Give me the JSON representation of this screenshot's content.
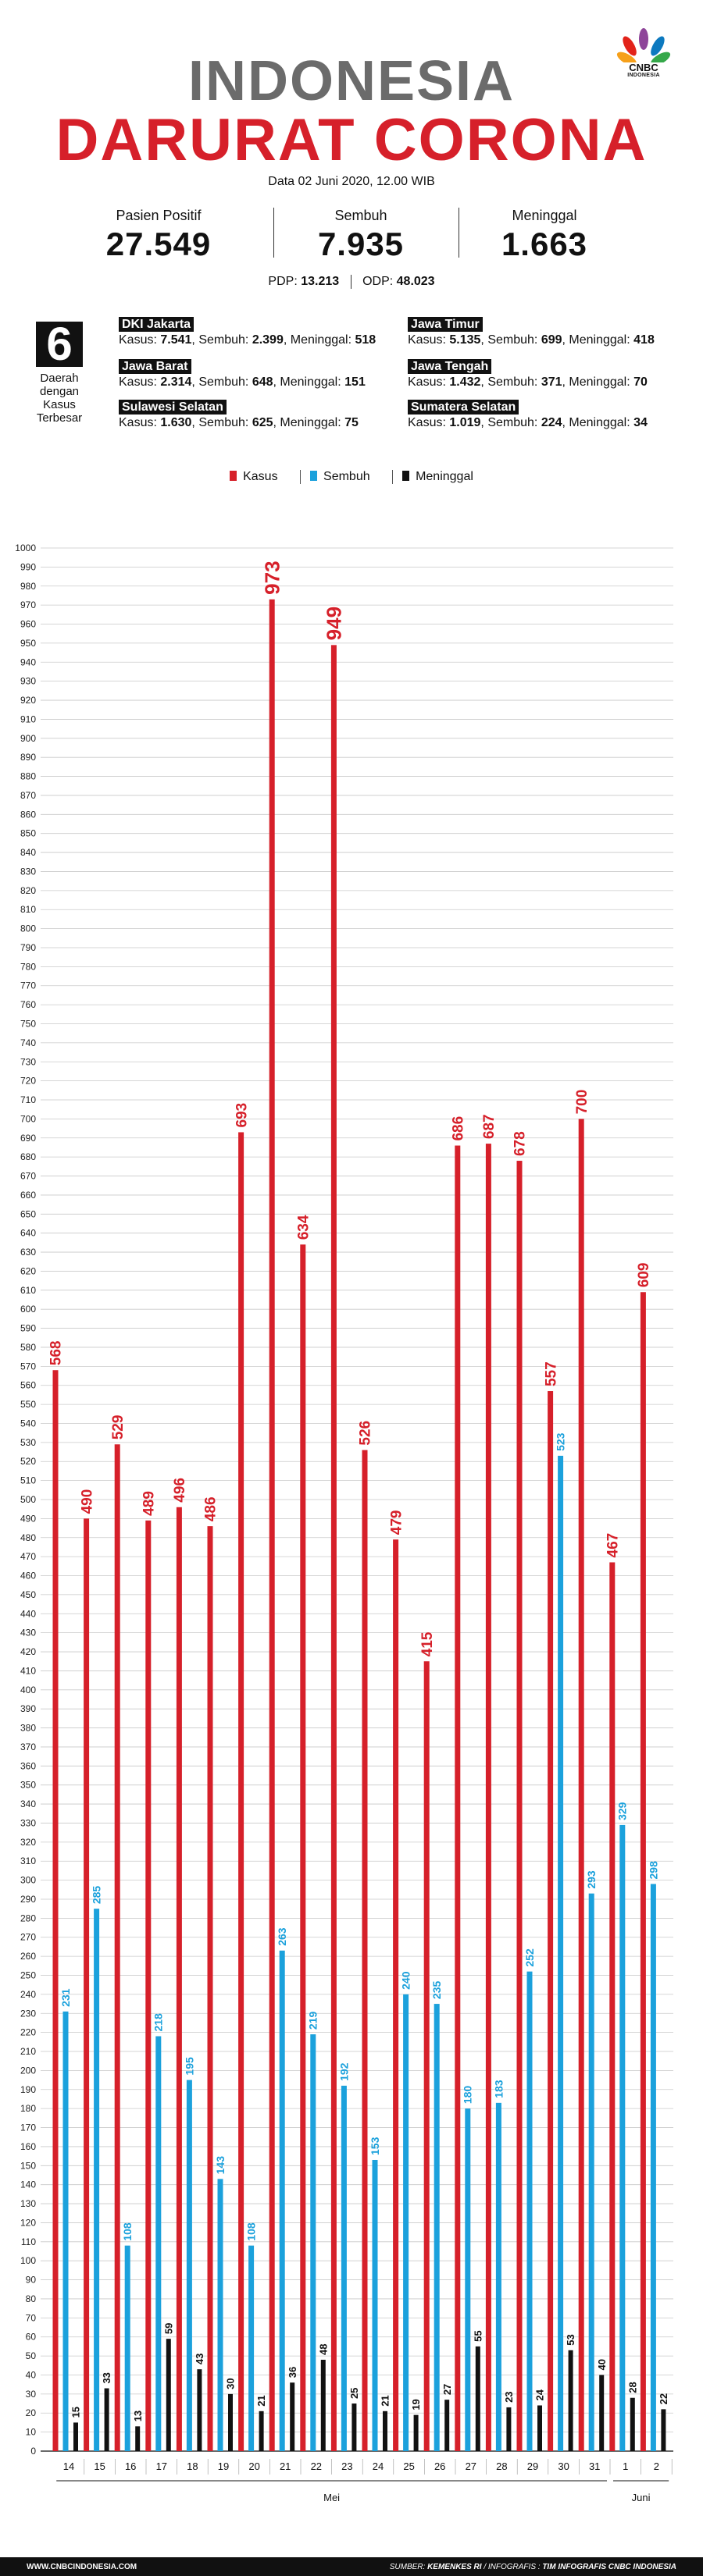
{
  "header": {
    "title_line1": "INDONESIA",
    "title_line2": "DARURAT CORONA",
    "date": "Data 02 Juni 2020, 12.00 WIB",
    "logo_text": "CNBC",
    "logo_sub": "INDONESIA"
  },
  "stats": [
    {
      "label": "Pasien Positif",
      "value": "27.549"
    },
    {
      "label": "Sembuh",
      "value": "7.935"
    },
    {
      "label": "Meninggal",
      "value": "1.663"
    }
  ],
  "pdp_odp": {
    "pdp_label": "PDP:",
    "pdp_value": "13.213",
    "odp_label": "ODP:",
    "odp_value": "48.023"
  },
  "top_regions": {
    "count": "6",
    "caption": [
      "Daerah",
      "dengan",
      "Kasus",
      "Terbesar"
    ],
    "items": [
      {
        "name": "DKI Jakarta",
        "kasus": "7.541",
        "sembuh": "2.399",
        "meninggal": "518"
      },
      {
        "name": "Jawa Timur",
        "kasus": "5.135",
        "sembuh": "699",
        "meninggal": "418"
      },
      {
        "name": "Jawa Barat",
        "kasus": "2.314",
        "sembuh": "648",
        "meninggal": "151"
      },
      {
        "name": "Jawa Tengah",
        "kasus": "1.432",
        "sembuh": "371",
        "meninggal": "70"
      },
      {
        "name": "Sulawesi Selatan",
        "kasus": "1.630",
        "sembuh": "625",
        "meninggal": "75"
      },
      {
        "name": "Sumatera Selatan",
        "kasus": "1.019",
        "sembuh": "224",
        "meninggal": "34"
      }
    ],
    "labels": {
      "kasus": "Kasus:",
      "sembuh": "Sembuh:",
      "meninggal": "Meninggal:"
    }
  },
  "legend": [
    {
      "label": "Kasus",
      "color": "#d6202a"
    },
    {
      "label": "Sembuh",
      "color": "#1ba1dc"
    },
    {
      "label": "Meninggal",
      "color": "#111111"
    }
  ],
  "chart_data": {
    "type": "bar",
    "categories": [
      "14",
      "15",
      "16",
      "17",
      "18",
      "19",
      "20",
      "21",
      "22",
      "23",
      "24",
      "25",
      "26",
      "27",
      "28",
      "29",
      "30",
      "31",
      "1",
      "2"
    ],
    "month_labels": [
      {
        "label": "Mei",
        "from": 0,
        "to": 17
      },
      {
        "label": "Juni",
        "from": 18,
        "to": 19
      }
    ],
    "series": [
      {
        "name": "Kasus",
        "color": "#d6202a",
        "values": [
          568,
          490,
          529,
          489,
          496,
          486,
          693,
          973,
          634,
          949,
          526,
          479,
          415,
          686,
          687,
          678,
          557,
          700,
          467,
          609
        ]
      },
      {
        "name": "Sembuh",
        "color": "#1ba1dc",
        "values": [
          231,
          285,
          108,
          218,
          195,
          143,
          108,
          263,
          219,
          192,
          153,
          240,
          235,
          180,
          183,
          252,
          523,
          293,
          329,
          298
        ]
      },
      {
        "name": "Meninggal",
        "color": "#111111",
        "values": [
          15,
          33,
          13,
          59,
          43,
          30,
          21,
          36,
          48,
          25,
          21,
          19,
          27,
          55,
          23,
          24,
          53,
          40,
          28,
          22
        ]
      }
    ],
    "ylim": [
      0,
      1000
    ],
    "ytick_step": 10,
    "grid": true
  },
  "footer": {
    "website": "WWW.CNBCINDONESIA.COM",
    "source_label": "SUMBER:",
    "source_value": "KEMENKES RI",
    "infografis_label": "/ INFOGRAFIS :",
    "infografis_value": "TIM INFOGRAFIS CNBC INDONESIA"
  }
}
